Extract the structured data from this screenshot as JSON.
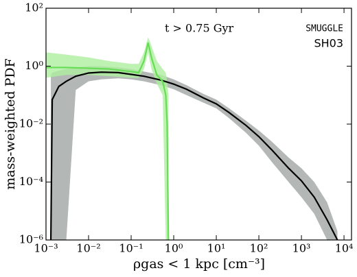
{
  "chart_data": {
    "type": "line",
    "annotation": "t > 0.75 Gyr",
    "xlabel": "ρgas < 1 kpc [cm⁻³]",
    "ylabel": "mass-weighted PDF",
    "xscale": "log",
    "yscale": "log",
    "xlim": [
      0.001,
      15000
    ],
    "ylim": [
      1e-06,
      100
    ],
    "xticks": [
      {
        "value": 0.001,
        "label": "10⁻³"
      },
      {
        "value": 0.01,
        "label": "10⁻²"
      },
      {
        "value": 0.1,
        "label": "10⁻¹"
      },
      {
        "value": 1,
        "label": "10⁰"
      },
      {
        "value": 10,
        "label": "10¹"
      },
      {
        "value": 100,
        "label": "10²"
      },
      {
        "value": 1000,
        "label": "10³"
      },
      {
        "value": 10000,
        "label": "10⁴"
      }
    ],
    "yticks": [
      {
        "value": 1e-06,
        "label": "10⁻⁶"
      },
      {
        "value": 0.0001,
        "label": "10⁻⁴"
      },
      {
        "value": 0.01,
        "label": "10⁻²"
      },
      {
        "value": 1,
        "label": "10⁰"
      },
      {
        "value": 100,
        "label": "10²"
      }
    ],
    "series": [
      {
        "name": "SMUGGLE",
        "color": "#000000",
        "band_color": "#b3b8b7",
        "x": [
          0.0013,
          0.0014,
          0.002,
          0.003,
          0.005,
          0.01,
          0.02,
          0.05,
          0.1,
          0.2,
          0.5,
          1,
          2,
          5,
          10,
          20,
          50,
          100,
          200,
          500,
          1000,
          2000,
          4000,
          7000
        ],
        "values": [
          1e-06,
          0.07,
          0.2,
          0.3,
          0.45,
          0.58,
          0.62,
          0.6,
          0.52,
          0.45,
          0.33,
          0.24,
          0.16,
          0.08,
          0.05,
          0.025,
          0.009,
          0.0037,
          0.0013,
          0.0003,
          0.00011,
          3e-05,
          5e-06,
          1e-06
        ],
        "lower": [
          1e-06,
          1e-06,
          1e-06,
          1e-06,
          0.15,
          0.3,
          0.35,
          0.38,
          0.35,
          0.3,
          0.22,
          0.16,
          0.1,
          0.055,
          0.035,
          0.016,
          0.005,
          0.0018,
          0.0005,
          0.0001,
          3e-05,
          8e-06,
          1e-06,
          1e-06
        ],
        "upper": [
          0.5,
          0.6,
          0.7,
          0.8,
          0.9,
          1,
          1,
          0.9,
          0.8,
          0.65,
          0.5,
          0.35,
          0.22,
          0.11,
          0.07,
          0.035,
          0.013,
          0.006,
          0.0025,
          0.0007,
          0.0003,
          0.0001,
          2e-05,
          2e-06
        ]
      },
      {
        "name": "SH03",
        "color": "#66dd55",
        "band_color": "#aeef9f",
        "x": [
          0.001,
          0.003,
          0.01,
          0.03,
          0.1,
          0.15,
          0.2,
          0.25,
          0.3,
          0.4,
          0.55,
          0.65,
          0.7,
          0.75
        ],
        "values": [
          0.9,
          0.9,
          0.85,
          0.8,
          0.65,
          0.6,
          1.5,
          6.5,
          2,
          0.5,
          0.3,
          0.1,
          0.01,
          1e-06
        ],
        "lower": [
          0.4,
          0.5,
          0.5,
          0.45,
          0.4,
          0.4,
          0.8,
          3,
          0.8,
          0.25,
          0.1,
          1e-06,
          1e-06,
          1e-06
        ],
        "upper": [
          3,
          2.5,
          2,
          1.5,
          1.2,
          1.2,
          3,
          10,
          5,
          1.5,
          0.8,
          0.6,
          0.3,
          0.1
        ]
      }
    ]
  }
}
